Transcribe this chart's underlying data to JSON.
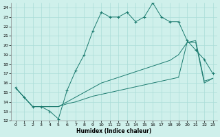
{
  "title": "",
  "xlabel": "Humidex (Indice chaleur)",
  "bg_color": "#cff0eb",
  "line_color": "#1a7a6e",
  "grid_color": "#aaddd8",
  "xlim": [
    -0.5,
    23.5
  ],
  "ylim": [
    12,
    24.5
  ],
  "xticks": [
    0,
    1,
    2,
    3,
    4,
    5,
    6,
    7,
    8,
    9,
    10,
    11,
    12,
    13,
    14,
    15,
    16,
    17,
    18,
    19,
    20,
    21,
    22,
    23
  ],
  "yticks": [
    12,
    13,
    14,
    15,
    16,
    17,
    18,
    19,
    20,
    21,
    22,
    23,
    24
  ],
  "series1_x": [
    0,
    1,
    2,
    3,
    4,
    5,
    6,
    7,
    8,
    9,
    10,
    11,
    12,
    13,
    14,
    15,
    16,
    17,
    18,
    19,
    20,
    21,
    22,
    23
  ],
  "series1_y": [
    15.5,
    14.5,
    13.5,
    13.5,
    13.0,
    12.2,
    15.2,
    17.3,
    19.0,
    21.5,
    23.5,
    23.0,
    23.0,
    23.5,
    22.5,
    23.0,
    24.5,
    23.0,
    22.5,
    22.5,
    20.5,
    19.5,
    18.5,
    17.0
  ],
  "series2_x": [
    0,
    1,
    2,
    3,
    4,
    5,
    6,
    7,
    8,
    9,
    10,
    11,
    12,
    13,
    14,
    15,
    16,
    17,
    18,
    19,
    20,
    21,
    22,
    23
  ],
  "series2_y": [
    15.5,
    14.5,
    13.5,
    13.5,
    13.5,
    13.5,
    14.0,
    14.5,
    15.0,
    15.5,
    16.0,
    16.3,
    16.6,
    16.9,
    17.2,
    17.5,
    17.8,
    18.1,
    18.4,
    19.0,
    20.3,
    20.5,
    16.2,
    16.5
  ],
  "series3_x": [
    0,
    1,
    2,
    3,
    4,
    5,
    6,
    7,
    8,
    9,
    10,
    11,
    12,
    13,
    14,
    15,
    16,
    17,
    18,
    19,
    20,
    21,
    22,
    23
  ],
  "series3_y": [
    15.5,
    14.5,
    13.5,
    13.5,
    13.5,
    13.5,
    13.8,
    14.0,
    14.3,
    14.6,
    14.8,
    15.0,
    15.2,
    15.4,
    15.6,
    15.8,
    16.0,
    16.2,
    16.4,
    16.6,
    20.3,
    20.3,
    16.0,
    16.5
  ]
}
